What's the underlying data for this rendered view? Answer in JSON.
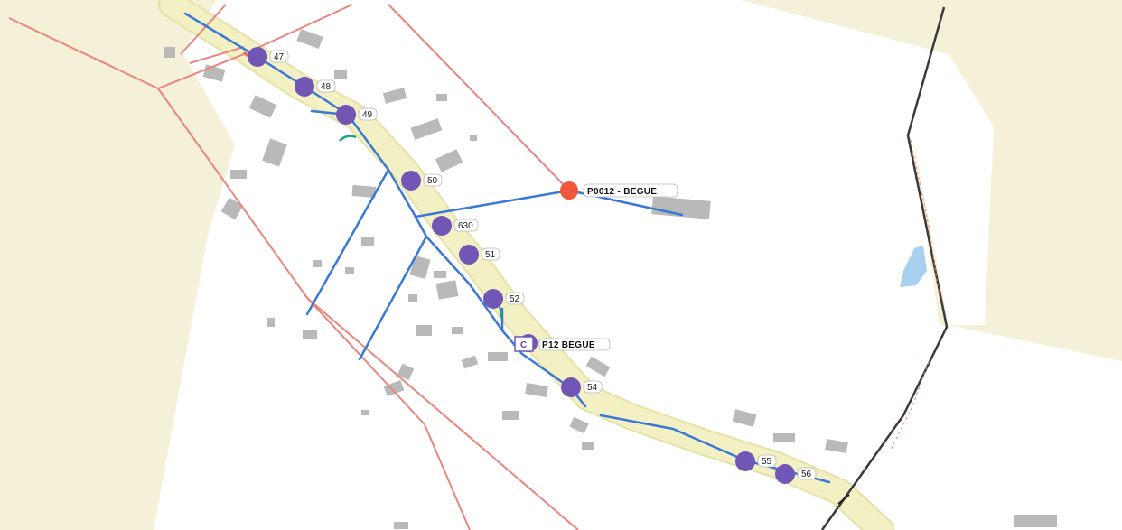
{
  "map": {
    "colors": {
      "field": "#f5f0d8",
      "road": "#f3f1c4",
      "road_edge": "#e4e2a6",
      "building": "#b9b9b9",
      "network": "#3a78d8",
      "parcel_line": "#e9857f",
      "boundary_line": "#3a3a3a",
      "pole": "#7156b5",
      "substation": "#f0563a",
      "water": "#a9d0ee",
      "marker_green": "#1aa67a"
    },
    "poles": [
      {
        "id": "pole-47",
        "label": "47"
      },
      {
        "id": "pole-48",
        "label": "48"
      },
      {
        "id": "pole-49",
        "label": "49"
      },
      {
        "id": "pole-50",
        "label": "50"
      },
      {
        "id": "pole-630",
        "label": "630"
      },
      {
        "id": "pole-51",
        "label": "51"
      },
      {
        "id": "pole-52",
        "label": "52"
      },
      {
        "id": "pole-54",
        "label": "54"
      },
      {
        "id": "pole-55",
        "label": "55"
      },
      {
        "id": "pole-56",
        "label": "56"
      }
    ],
    "substation": {
      "label": "P0012 - BEGUE"
    },
    "cabinet": {
      "letter": "C",
      "label": "P12 BEGUE"
    }
  }
}
